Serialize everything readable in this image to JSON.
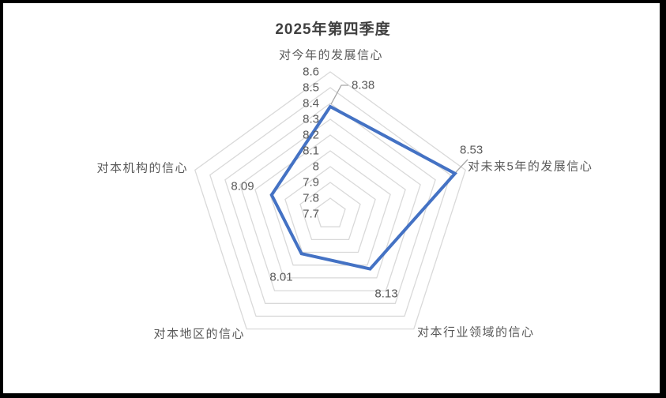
{
  "chart_data": {
    "type": "radar",
    "title": "2025年第四季度",
    "categories": [
      "对今年的发展信心",
      "对未来5年的发展信心",
      "对本行业领域的信心",
      "对本地区的信心",
      "对本机构的信心"
    ],
    "series": [
      {
        "name": "2025年第四季度",
        "values": [
          8.38,
          8.53,
          8.13,
          8.01,
          8.09
        ]
      }
    ],
    "data_labels": [
      "8.38",
      "8.53",
      "8.13",
      "8.01",
      "8.09"
    ],
    "axis": {
      "min": 7.7,
      "max": 8.6,
      "step": 0.1,
      "tick_labels": [
        "8.6",
        "8.5",
        "8.4",
        "8.3",
        "8.2",
        "8.1",
        "8",
        "7.9",
        "7.8",
        "7.7"
      ]
    },
    "legend": "none",
    "grid": "pentagon-rings",
    "colors": {
      "series_line": "#4472C4",
      "gridline": "#D9D9D9",
      "leader_line": "#A6A6A6",
      "label_text": "#595959",
      "title_text": "#404040",
      "frame": "#000000",
      "background": "#FFFFFF"
    }
  }
}
